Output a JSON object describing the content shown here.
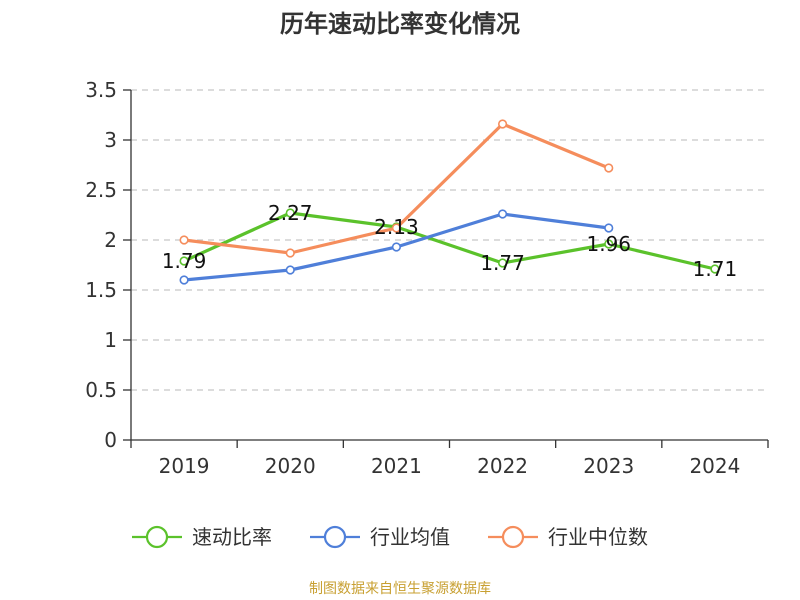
{
  "chart_data": {
    "type": "line",
    "title": "历年速动比率变化情况",
    "categories": [
      "2019",
      "2020",
      "2021",
      "2022",
      "2023",
      "2024"
    ],
    "ylim": [
      0,
      3.5
    ],
    "yticks": [
      "0",
      "0.5",
      "1",
      "1.5",
      "2",
      "2.5",
      "3",
      "3.5"
    ],
    "grid": true,
    "legend_position": "bottom",
    "series": [
      {
        "name": "速动比率",
        "color": "#5bc22b",
        "values": [
          1.79,
          2.27,
          2.13,
          1.77,
          1.96,
          1.71
        ],
        "labels": [
          "1.79",
          "2.27",
          "2.13",
          "1.77",
          "1.96",
          "1.71"
        ]
      },
      {
        "name": "行业均值",
        "color": "#4f7fd9",
        "values": [
          1.6,
          1.7,
          1.93,
          2.26,
          2.12,
          null
        ]
      },
      {
        "name": "行业中位数",
        "color": "#f58d5c",
        "values": [
          2.0,
          1.87,
          2.12,
          3.16,
          2.72,
          null
        ]
      }
    ],
    "source": "制图数据来自恒生聚源数据库"
  }
}
